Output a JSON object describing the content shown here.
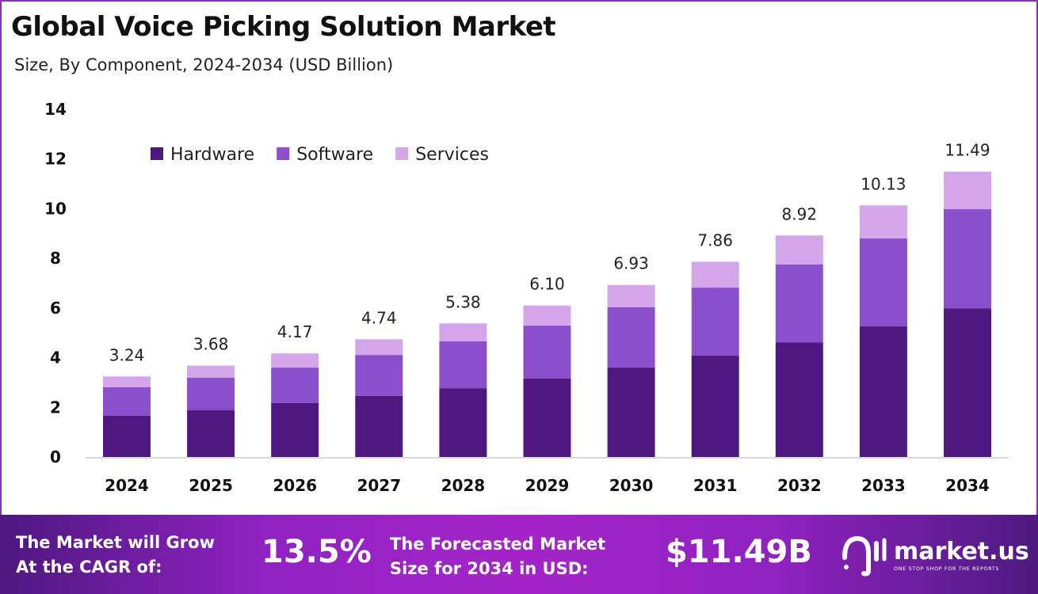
{
  "chart_data": {
    "type": "bar",
    "stacked": true,
    "title": "Global Voice Picking Solution Market",
    "subtitle": "Size, By Component, 2024-2034 (USD Billion)",
    "categories": [
      "2024",
      "2025",
      "2026",
      "2027",
      "2028",
      "2029",
      "2030",
      "2031",
      "2032",
      "2033",
      "2034"
    ],
    "series": [
      {
        "name": "Hardware",
        "color": "#4f1780",
        "values": [
          1.66,
          1.88,
          2.17,
          2.46,
          2.77,
          3.16,
          3.6,
          4.08,
          4.62,
          5.26,
          5.99
        ]
      },
      {
        "name": "Software",
        "color": "#8b4fcb",
        "values": [
          1.15,
          1.31,
          1.43,
          1.65,
          1.89,
          2.13,
          2.43,
          2.74,
          3.13,
          3.54,
          3.99
        ]
      },
      {
        "name": "Services",
        "color": "#d3a6ea",
        "values": [
          0.43,
          0.49,
          0.57,
          0.63,
          0.72,
          0.81,
          0.9,
          1.04,
          1.17,
          1.33,
          1.51
        ]
      }
    ],
    "totals": [
      "3.24",
      "3.68",
      "4.17",
      "4.74",
      "5.38",
      "6.10",
      "6.93",
      "7.86",
      "8.92",
      "10.13",
      "11.49"
    ],
    "ylim": [
      0,
      14
    ],
    "yticks": [
      "0",
      "2",
      "4",
      "6",
      "8",
      "10",
      "12",
      "14"
    ],
    "grid": false,
    "legend": "top-left"
  },
  "banner": {
    "cagr_label_1": "The Market will Grow",
    "cagr_label_2": "At the CAGR of:",
    "cagr_value": "13.5%",
    "forecast_label_1": "The Forecasted Market",
    "forecast_label_2": "Size for 2034 in USD:",
    "forecast_value": "$11.49B",
    "logo_name": "market.us",
    "logo_tagline": "ONE STOP SHOP FOR THE REPORTS"
  }
}
